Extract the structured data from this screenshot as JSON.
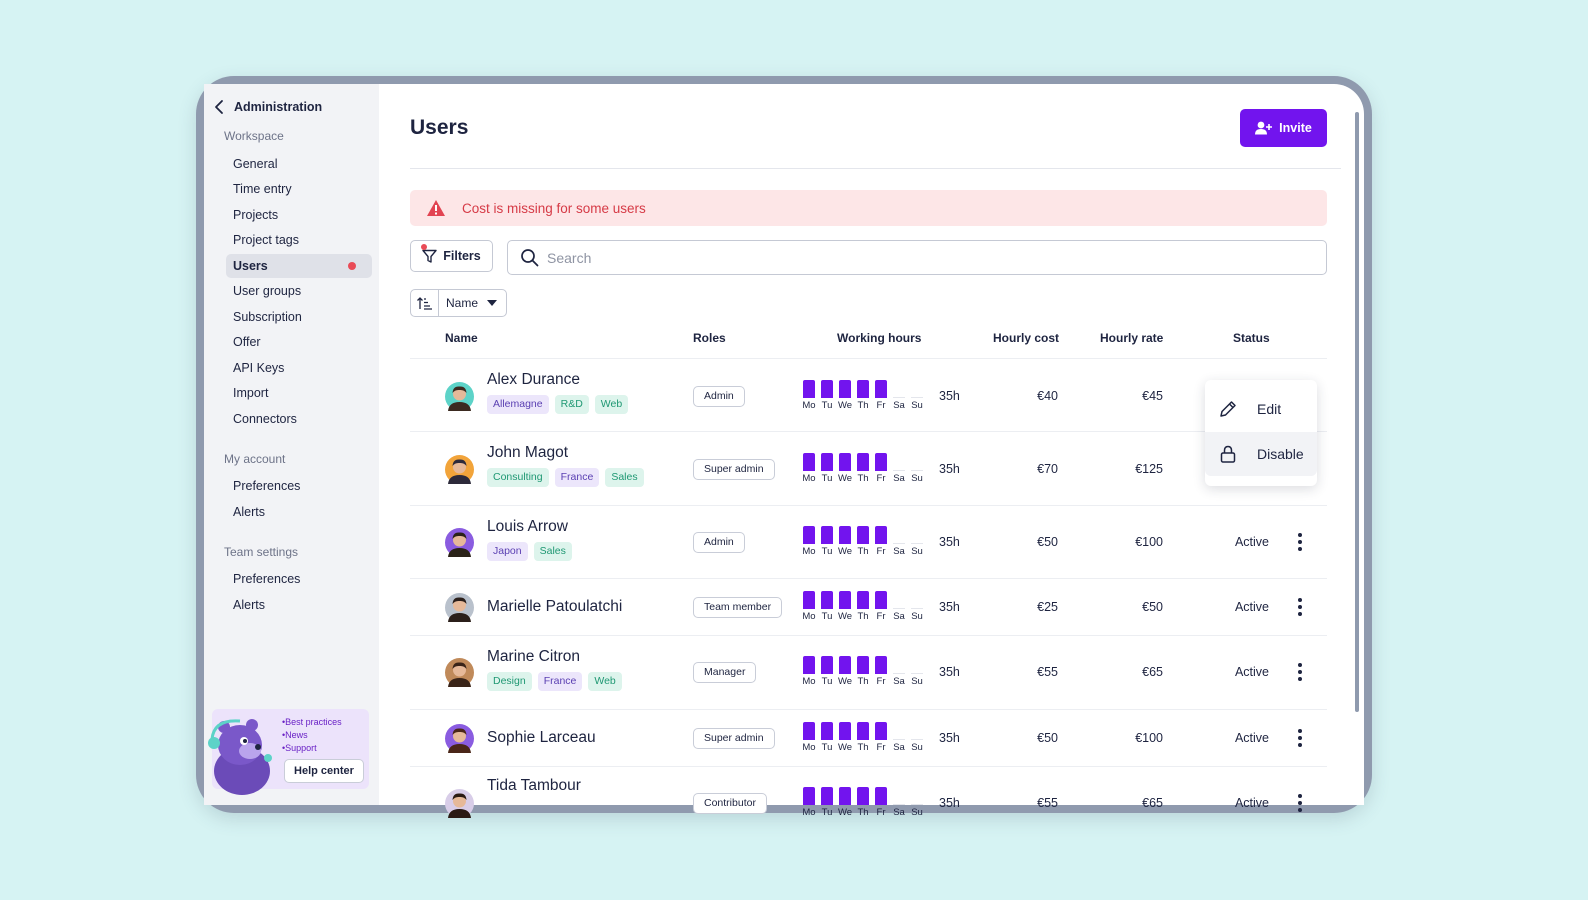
{
  "sidebar": {
    "back_label": "Administration",
    "sections": [
      {
        "title": "Workspace",
        "items": [
          "General",
          "Time entry",
          "Projects",
          "Project tags",
          "Users",
          "User groups",
          "Subscription",
          "Offer",
          "API Keys",
          "Import",
          "Connectors"
        ]
      },
      {
        "title": "My account",
        "items": [
          "Preferences",
          "Alerts"
        ]
      },
      {
        "title": "Team settings",
        "items": [
          "Preferences",
          "Alerts"
        ]
      }
    ],
    "active_item": "Users",
    "help": {
      "links": [
        "•Best practices",
        "•News",
        "•Support"
      ],
      "button": "Help center"
    }
  },
  "page": {
    "title": "Users",
    "invite_label": "Invite"
  },
  "alert": {
    "text": "Cost is missing for some users"
  },
  "toolbar": {
    "filters_label": "Filters",
    "search_placeholder": "Search",
    "sort_label": "Name"
  },
  "table": {
    "headers": {
      "name": "Name",
      "roles": "Roles",
      "hours": "Working hours",
      "cost": "Hourly cost",
      "rate": "Hourly rate",
      "status": "Status"
    },
    "days": [
      "Mo",
      "Tu",
      "We",
      "Th",
      "Fr",
      "Sa",
      "Su"
    ],
    "rows": [
      {
        "name": "Alex Durance",
        "tags": [
          {
            "label": "Allemagne",
            "color": "purple"
          },
          {
            "label": "R&D",
            "color": "green"
          },
          {
            "label": "Web",
            "color": "green"
          }
        ],
        "role": "Admin",
        "hours": "35h",
        "cost": "€40",
        "rate": "€45",
        "status": ""
      },
      {
        "name": "John Magot",
        "tags": [
          {
            "label": "Consulting",
            "color": "green"
          },
          {
            "label": "France",
            "color": "purple"
          },
          {
            "label": "Sales",
            "color": "green"
          }
        ],
        "role": "Super admin",
        "hours": "35h",
        "cost": "€70",
        "rate": "€125",
        "status": ""
      },
      {
        "name": "Louis Arrow",
        "tags": [
          {
            "label": "Japon",
            "color": "purple"
          },
          {
            "label": "Sales",
            "color": "green"
          }
        ],
        "role": "Admin",
        "hours": "35h",
        "cost": "€50",
        "rate": "€100",
        "status": "Active"
      },
      {
        "name": "Marielle Patoulatchi",
        "tags": [],
        "role": "Team member",
        "hours": "35h",
        "cost": "€25",
        "rate": "€50",
        "status": "Active"
      },
      {
        "name": "Marine Citron",
        "tags": [
          {
            "label": "Design",
            "color": "green"
          },
          {
            "label": "France",
            "color": "purple"
          },
          {
            "label": "Web",
            "color": "green"
          }
        ],
        "role": "Manager",
        "hours": "35h",
        "cost": "€55",
        "rate": "€65",
        "status": "Active"
      },
      {
        "name": "Sophie Larceau",
        "tags": [],
        "role": "Super admin",
        "hours": "35h",
        "cost": "€50",
        "rate": "€100",
        "status": "Active"
      },
      {
        "name": "Tida Tambour",
        "tags": [],
        "role": "Contributor",
        "hours": "35h",
        "cost": "€55",
        "rate": "€65",
        "status": "Active"
      }
    ]
  },
  "context_menu": {
    "items": [
      "Edit",
      "Disable"
    ]
  },
  "colors": {
    "accent": "#7214ee",
    "alert_bg": "#fde6e7",
    "alert_text": "#d63a46",
    "tag_purple_bg": "#ece6fb",
    "tag_green_bg": "#ddf4ec"
  }
}
